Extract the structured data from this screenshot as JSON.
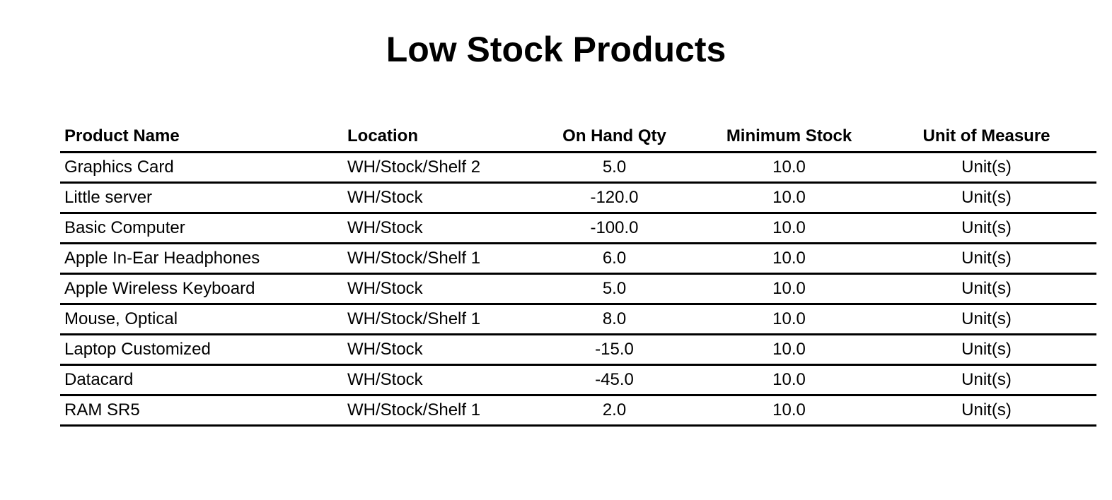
{
  "report": {
    "title": "Low Stock Products"
  },
  "table": {
    "headers": {
      "product_name": "Product Name",
      "location": "Location",
      "on_hand_qty": "On Hand Qty",
      "minimum_stock": "Minimum Stock",
      "unit_of_measure": "Unit of Measure"
    },
    "rows": [
      {
        "product_name": "Graphics Card",
        "location": "WH/Stock/Shelf 2",
        "on_hand_qty": "5.0",
        "minimum_stock": "10.0",
        "unit_of_measure": "Unit(s)"
      },
      {
        "product_name": "Little server",
        "location": "WH/Stock",
        "on_hand_qty": "-120.0",
        "minimum_stock": "10.0",
        "unit_of_measure": "Unit(s)"
      },
      {
        "product_name": "Basic Computer",
        "location": "WH/Stock",
        "on_hand_qty": "-100.0",
        "minimum_stock": "10.0",
        "unit_of_measure": "Unit(s)"
      },
      {
        "product_name": "Apple In-Ear Headphones",
        "location": "WH/Stock/Shelf 1",
        "on_hand_qty": "6.0",
        "minimum_stock": "10.0",
        "unit_of_measure": "Unit(s)"
      },
      {
        "product_name": "Apple Wireless Keyboard",
        "location": "WH/Stock",
        "on_hand_qty": "5.0",
        "minimum_stock": "10.0",
        "unit_of_measure": "Unit(s)"
      },
      {
        "product_name": "Mouse, Optical",
        "location": "WH/Stock/Shelf 1",
        "on_hand_qty": "8.0",
        "minimum_stock": "10.0",
        "unit_of_measure": "Unit(s)"
      },
      {
        "product_name": "Laptop Customized",
        "location": "WH/Stock",
        "on_hand_qty": "-15.0",
        "minimum_stock": "10.0",
        "unit_of_measure": "Unit(s)"
      },
      {
        "product_name": "Datacard",
        "location": "WH/Stock",
        "on_hand_qty": "-45.0",
        "minimum_stock": "10.0",
        "unit_of_measure": "Unit(s)"
      },
      {
        "product_name": "RAM SR5",
        "location": "WH/Stock/Shelf 1",
        "on_hand_qty": "2.0",
        "minimum_stock": "10.0",
        "unit_of_measure": "Unit(s)"
      }
    ]
  }
}
